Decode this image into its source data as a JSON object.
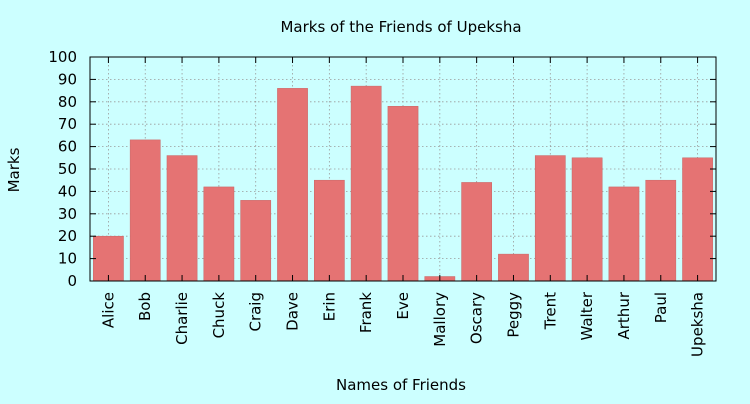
{
  "chart_data": {
    "type": "bar",
    "title": "Marks of the Friends of Upeksha",
    "xlabel": "Names of Friends",
    "ylabel": "Marks",
    "ylim": [
      0,
      100
    ],
    "yticks": [
      "0",
      "10",
      "20",
      "30",
      "40",
      "50",
      "60",
      "70",
      "80",
      "90",
      "100"
    ],
    "grid": true,
    "categories": [
      "Alice",
      "Bob",
      "Charlie",
      "Chuck",
      "Craig",
      "Dave",
      "Erin",
      "Frank",
      "Eve",
      "Mallory",
      "Oscary",
      "Peggy",
      "Trent",
      "Walter",
      "Arthur",
      "Paul",
      "Upeksha"
    ],
    "values": [
      20,
      63,
      56,
      42,
      36,
      86,
      45,
      87,
      78,
      2,
      44,
      12,
      56,
      55,
      42,
      45,
      55
    ]
  },
  "colors": {
    "background": "#ccffff",
    "plot_background": "#ccffff",
    "bar_fill": "#e57373",
    "bar_stroke": "#c86464",
    "grid": "#9a9a9a"
  }
}
